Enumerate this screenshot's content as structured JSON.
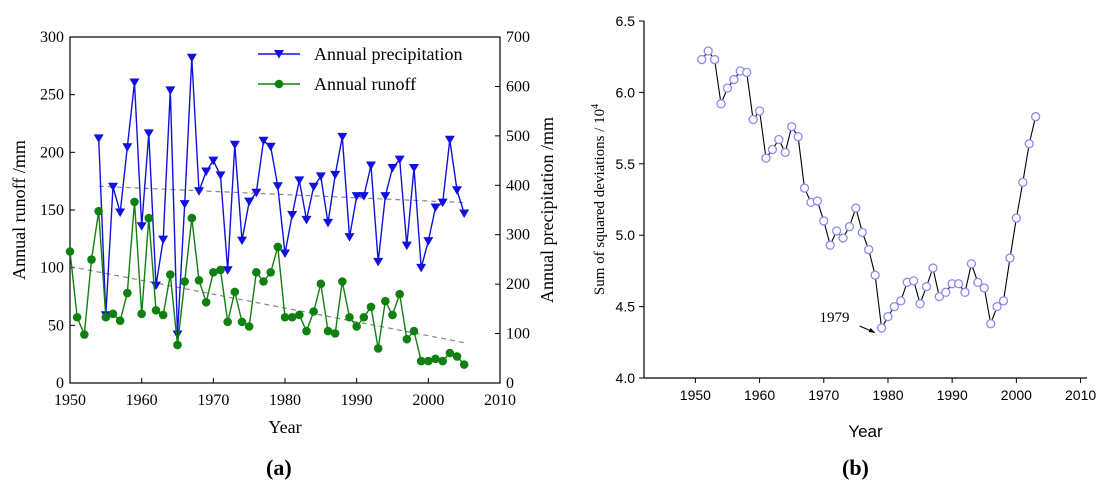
{
  "panel_labels": [
    "(a)",
    "(b)"
  ],
  "chart_data": [
    {
      "type": "line",
      "xlabel": "Year",
      "ylabel_left": "Annual runoff /mm",
      "ylabel_right": "Annual precipitation /mm",
      "xlim": [
        1950,
        2010
      ],
      "ylim_left": [
        0,
        300
      ],
      "ylim_right": [
        0,
        700
      ],
      "xticks": [
        1950,
        1960,
        1970,
        1980,
        1990,
        2000,
        2010
      ],
      "yticks_left": [
        0,
        50,
        100,
        150,
        200,
        250,
        300
      ],
      "yticks_right": [
        0,
        100,
        200,
        300,
        400,
        500,
        600,
        700
      ],
      "grid": false,
      "legend_position": "top-right",
      "series": [
        {
          "name": "Annual precipitation",
          "axis": "right",
          "color": "#1010e0",
          "marker": "triangle-down",
          "points": [
            [
              1954,
              495
            ],
            [
              1955,
              137
            ],
            [
              1956,
              397
            ],
            [
              1957,
              345
            ],
            [
              1958,
              477
            ],
            [
              1959,
              608
            ],
            [
              1960,
              317
            ],
            [
              1961,
              505
            ],
            [
              1962,
              197
            ],
            [
              1963,
              290
            ],
            [
              1964,
              592
            ],
            [
              1965,
              98
            ],
            [
              1966,
              362
            ],
            [
              1967,
              658
            ],
            [
              1968,
              388
            ],
            [
              1969,
              428
            ],
            [
              1970,
              450
            ],
            [
              1971,
              420
            ],
            [
              1972,
              228
            ],
            [
              1973,
              482
            ],
            [
              1974,
              288
            ],
            [
              1975,
              367
            ],
            [
              1976,
              385
            ],
            [
              1977,
              490
            ],
            [
              1978,
              478
            ],
            [
              1979,
              398
            ],
            [
              1980,
              262
            ],
            [
              1981,
              340
            ],
            [
              1982,
              410
            ],
            [
              1983,
              330
            ],
            [
              1984,
              397
            ],
            [
              1985,
              418
            ],
            [
              1986,
              324
            ],
            [
              1987,
              421
            ],
            [
              1988,
              498
            ],
            [
              1989,
              295
            ],
            [
              1990,
              378
            ],
            [
              1991,
              378
            ],
            [
              1992,
              440
            ],
            [
              1993,
              245
            ],
            [
              1994,
              378
            ],
            [
              1995,
              435
            ],
            [
              1996,
              452
            ],
            [
              1997,
              278
            ],
            [
              1998,
              435
            ],
            [
              1999,
              233
            ],
            [
              2000,
              287
            ],
            [
              2001,
              355
            ],
            [
              2002,
              365
            ],
            [
              2003,
              492
            ],
            [
              2004,
              390
            ],
            [
              2005,
              343
            ]
          ]
        },
        {
          "name": "Annual runoff",
          "axis": "left",
          "color": "#108010",
          "marker": "circle",
          "points": [
            [
              1950,
              114
            ],
            [
              1951,
              57
            ],
            [
              1952,
              42
            ],
            [
              1953,
              107
            ],
            [
              1954,
              149
            ],
            [
              1955,
              57
            ],
            [
              1956,
              60
            ],
            [
              1957,
              54
            ],
            [
              1958,
              78
            ],
            [
              1959,
              157
            ],
            [
              1960,
              60
            ],
            [
              1961,
              143
            ],
            [
              1962,
              63
            ],
            [
              1963,
              59
            ],
            [
              1964,
              94
            ],
            [
              1965,
              33
            ],
            [
              1966,
              88
            ],
            [
              1967,
              143
            ],
            [
              1968,
              89
            ],
            [
              1969,
              70
            ],
            [
              1970,
              96
            ],
            [
              1971,
              98
            ],
            [
              1972,
              53
            ],
            [
              1973,
              79
            ],
            [
              1974,
              53
            ],
            [
              1975,
              49
            ],
            [
              1976,
              96
            ],
            [
              1977,
              88
            ],
            [
              1978,
              96
            ],
            [
              1979,
              118
            ],
            [
              1980,
              57
            ],
            [
              1981,
              57
            ],
            [
              1982,
              59
            ],
            [
              1983,
              45
            ],
            [
              1984,
              62
            ],
            [
              1985,
              86
            ],
            [
              1986,
              45
            ],
            [
              1987,
              43
            ],
            [
              1988,
              88
            ],
            [
              1989,
              57
            ],
            [
              1990,
              49
            ],
            [
              1991,
              57
            ],
            [
              1992,
              66
            ],
            [
              1993,
              30
            ],
            [
              1994,
              71
            ],
            [
              1995,
              59
            ],
            [
              1996,
              77
            ],
            [
              1997,
              38
            ],
            [
              1998,
              45
            ],
            [
              1999,
              19
            ],
            [
              2000,
              19
            ],
            [
              2001,
              21
            ],
            [
              2002,
              19
            ],
            [
              2003,
              26
            ],
            [
              2004,
              23
            ],
            [
              2005,
              16
            ]
          ]
        }
      ],
      "trendlines": [
        {
          "axis": "right",
          "from": [
            1954,
            398
          ],
          "to": [
            2005,
            365
          ]
        },
        {
          "axis": "left",
          "from": [
            1950,
            101
          ],
          "to": [
            2005,
            35
          ]
        }
      ]
    },
    {
      "type": "line",
      "xlabel": "Year",
      "ylabel": "Sum of squared deviations / 10",
      "ylabel_superscript": "4",
      "xlim": [
        1942,
        2011
      ],
      "ylim": [
        4.0,
        6.5
      ],
      "xticks": [
        1950,
        1960,
        1970,
        1980,
        1990,
        2000,
        2010
      ],
      "yticks": [
        4.0,
        4.5,
        5.0,
        5.5,
        6.0,
        6.5
      ],
      "grid": false,
      "color": "#8a8af0",
      "marker": "open-circle",
      "annotation": {
        "text": "1979",
        "x": 1979,
        "y": 4.35
      },
      "points": [
        [
          1951,
          6.23
        ],
        [
          1952,
          6.29
        ],
        [
          1953,
          6.23
        ],
        [
          1954,
          5.92
        ],
        [
          1955,
          6.03
        ],
        [
          1956,
          6.09
        ],
        [
          1957,
          6.15
        ],
        [
          1958,
          6.14
        ],
        [
          1959,
          5.81
        ],
        [
          1960,
          5.87
        ],
        [
          1961,
          5.54
        ],
        [
          1962,
          5.6
        ],
        [
          1963,
          5.67
        ],
        [
          1964,
          5.58
        ],
        [
          1965,
          5.76
        ],
        [
          1966,
          5.69
        ],
        [
          1967,
          5.33
        ],
        [
          1968,
          5.23
        ],
        [
          1969,
          5.24
        ],
        [
          1970,
          5.1
        ],
        [
          1971,
          4.93
        ],
        [
          1972,
          5.03
        ],
        [
          1973,
          4.98
        ],
        [
          1974,
          5.06
        ],
        [
          1975,
          5.19
        ],
        [
          1976,
          5.02
        ],
        [
          1977,
          4.9
        ],
        [
          1978,
          4.72
        ],
        [
          1979,
          4.35
        ],
        [
          1980,
          4.43
        ],
        [
          1981,
          4.5
        ],
        [
          1982,
          4.54
        ],
        [
          1983,
          4.67
        ],
        [
          1984,
          4.68
        ],
        [
          1985,
          4.52
        ],
        [
          1986,
          4.64
        ],
        [
          1987,
          4.77
        ],
        [
          1988,
          4.57
        ],
        [
          1989,
          4.6
        ],
        [
          1990,
          4.66
        ],
        [
          1991,
          4.66
        ],
        [
          1992,
          4.6
        ],
        [
          1993,
          4.8
        ],
        [
          1994,
          4.67
        ],
        [
          1995,
          4.63
        ],
        [
          1996,
          4.38
        ],
        [
          1997,
          4.5
        ],
        [
          1998,
          4.54
        ],
        [
          1999,
          4.84
        ],
        [
          2000,
          5.12
        ],
        [
          2001,
          5.37
        ],
        [
          2002,
          5.64
        ],
        [
          2003,
          5.83
        ]
      ]
    }
  ]
}
